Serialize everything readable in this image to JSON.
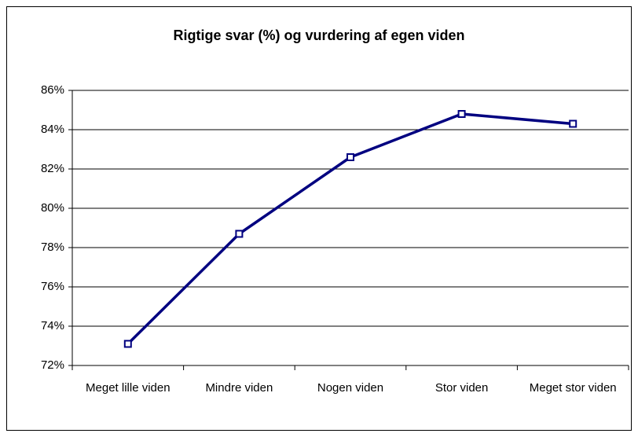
{
  "chart_data": {
    "type": "line",
    "title": "Rigtige svar (%) og vurdering af egen viden",
    "categories": [
      "Meget lille viden",
      "Mindre viden",
      "Nogen viden",
      "Stor viden",
      "Meget stor viden"
    ],
    "values": [
      73.1,
      78.7,
      82.6,
      84.8,
      84.3
    ],
    "color": "#000080",
    "ylim": [
      72,
      86
    ],
    "yticks": [
      {
        "value": 72,
        "label": "72%"
      },
      {
        "value": 74,
        "label": "74%"
      },
      {
        "value": 76,
        "label": "76%"
      },
      {
        "value": 78,
        "label": "78%"
      },
      {
        "value": 80,
        "label": "80%"
      },
      {
        "value": 82,
        "label": "82%"
      },
      {
        "value": 84,
        "label": "84%"
      },
      {
        "value": 86,
        "label": "86%"
      }
    ],
    "grid": true
  }
}
